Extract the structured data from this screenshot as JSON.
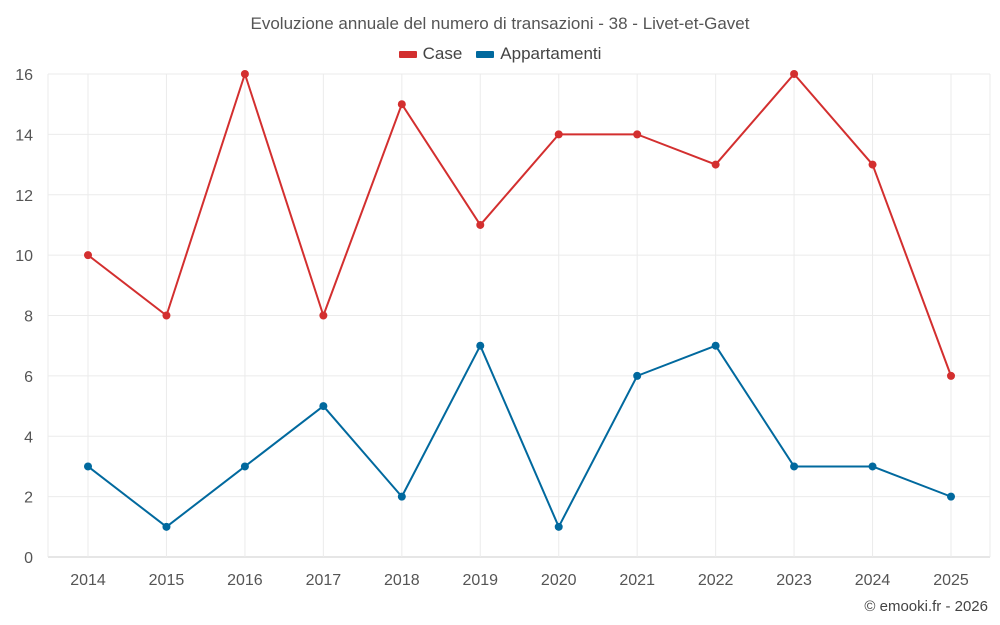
{
  "chart_data": {
    "type": "line",
    "title": "Evoluzione annuale del numero di transazioni - 38 - Livet-et-Gavet",
    "categories": [
      "2014",
      "2015",
      "2016",
      "2017",
      "2018",
      "2019",
      "2020",
      "2021",
      "2022",
      "2023",
      "2024",
      "2025"
    ],
    "series": [
      {
        "name": "Case",
        "color": "#d32f2f",
        "values": [
          10,
          8,
          16,
          8,
          15,
          11,
          14,
          14,
          13,
          16,
          13,
          6
        ]
      },
      {
        "name": "Appartamenti",
        "color": "#01699e",
        "values": [
          3,
          1,
          3,
          5,
          2,
          7,
          1,
          6,
          7,
          3,
          3,
          2
        ]
      }
    ],
    "ylim": [
      0,
      16
    ],
    "yticks": [
      0,
      2,
      4,
      6,
      8,
      10,
      12,
      14,
      16
    ],
    "grid": true,
    "legend_position": "top-center",
    "xlabel": "",
    "ylabel": ""
  },
  "credit": "© emooki.fr - 2026"
}
